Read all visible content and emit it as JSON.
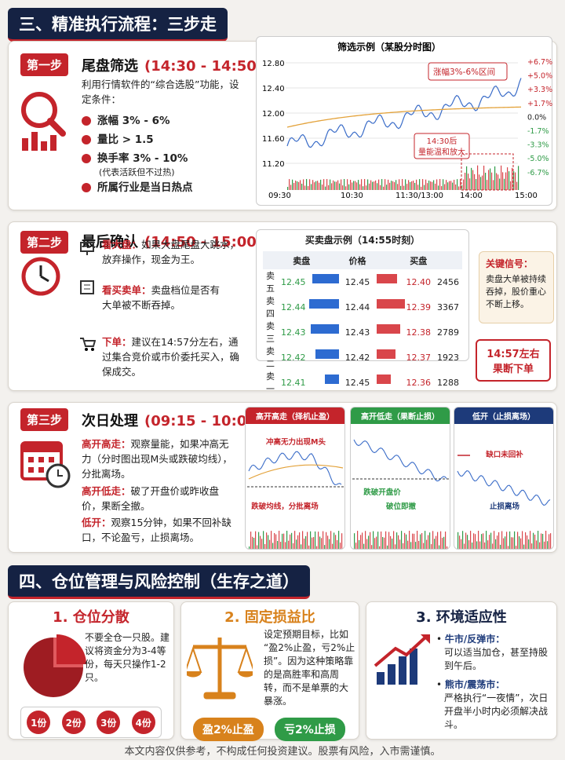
{
  "section3": {
    "title": "三、精准执行流程：三步走"
  },
  "step1": {
    "badge": "第一步",
    "title": "尾盘筛选",
    "time": "(14:30 - 14:50)",
    "desc": "利用行情软件的“综合选股”功能，设定条件：",
    "conditions": [
      "涨幅 3% - 6%",
      "量比 > 1.5",
      "换手率 3% - 10%",
      "所属行业是当日热点"
    ],
    "note": "(代表活跃但不过热)",
    "chart": {
      "title": "筛选示例（某股分时图）",
      "yticks": [
        "12.80",
        "12.40",
        "12.00",
        "11.60",
        "11.20"
      ],
      "pct_ticks": [
        "+6.7%",
        "+5.0%",
        "+3.3%",
        "+1.7%",
        "0.0%",
        "-1.7%",
        "-3.3%",
        "-5.0%",
        "-6.7%"
      ],
      "xticks": [
        "09:30",
        "10:30",
        "11:30/13:00",
        "14:00",
        "15:00"
      ],
      "annotation_range": "涨幅3%-6%区间",
      "annotation_volume": [
        "14:30后",
        "量能温和放大"
      ]
    }
  },
  "step2": {
    "badge": "第二步",
    "title": "最后确认",
    "time": "(14:50 - 15:00)",
    "items": [
      {
        "label": "看大盘：",
        "text": "如果大盘尾盘大跳水，放弃操作，现金为王。"
      },
      {
        "label": "看买卖单：",
        "text": "卖盘档位是否有大单被不断吞掉。"
      },
      {
        "label": "下单：",
        "text": "建议在14:57分左右，通过集合竞价或市价委托买入，确保成交。"
      }
    ],
    "orderbook": {
      "title": "买卖盘示例（14:55时刻）",
      "headers": [
        "卖盘",
        "价格",
        "买盘"
      ],
      "rows": [
        [
          "卖五",
          "12.45",
          "12.45",
          "12.40",
          "2456"
        ],
        [
          "卖四",
          "12.44",
          "12.44",
          "12.39",
          "3367"
        ],
        [
          "卖三",
          "12.43",
          "12.43",
          "12.38",
          "2789"
        ],
        [
          "卖二",
          "12.42",
          "12.42",
          "12.37",
          "1923"
        ],
        [
          "卖一",
          "12.41",
          "12.45",
          "12.36",
          "1288"
        ]
      ]
    },
    "signal": {
      "title": "关键信号：",
      "text": "卖盘大单被持续吞掉，股价重心不断上移。"
    },
    "action": [
      "14:57左右",
      "果断下单"
    ]
  },
  "step3": {
    "badge": "第三步",
    "title": "次日处理",
    "time": "(09:15 - 10:00)",
    "items": [
      {
        "label": "高开高走：",
        "text": "观察量能，如果冲高无力（分时图出现M头或跌破均线），分批离场。"
      },
      {
        "label": "高开低走：",
        "text": "破了开盘价或昨收盘价，果断全撤。"
      },
      {
        "label": "低开：",
        "text": "观察15分钟，如果不回补缺口，不论盈亏，止损离场。"
      }
    ],
    "charts": [
      {
        "title": "高开高走（择机止盈）",
        "notes": [
          "冲高无力出现M头",
          "跌破均线，分批离场"
        ]
      },
      {
        "title": "高开低走（果断止损）",
        "notes": [
          "跌破开盘价",
          "破位即撤"
        ]
      },
      {
        "title": "低开（止损离场）",
        "notes": [
          "缺口未回补",
          "止损离场"
        ]
      }
    ]
  },
  "section4": {
    "title": "四、仓位管理与风险控制（生存之道）",
    "cards": [
      {
        "title": "1. 仓位分散",
        "text": "不要全仓一只股。建议将资金分为3-4等份，每天只操作1-2只。",
        "chips": [
          "1份",
          "2份",
          "3份",
          "4份"
        ]
      },
      {
        "title": "2. 固定损益比",
        "text": "设定预期目标，比如“盈2%止盈，亏2%止损”。因为这种策略靠的是高胜率和高周转，而不是单票的大暴涨。",
        "buttons": [
          "盈2%止盈",
          "亏2%止损"
        ]
      },
      {
        "title": "3. 环境适应性",
        "items": [
          {
            "label": "牛市/反弹市：",
            "text": "可以适当加仓，甚至持股到午后。"
          },
          {
            "label": "熊市/震荡市：",
            "text": "严格执行“一夜情”，次日开盘半小时内必须解决战斗。"
          }
        ]
      }
    ]
  },
  "footer": "本文内容仅供参考，不构成任何投资建议。股票有风险，入市需谨慎。"
}
